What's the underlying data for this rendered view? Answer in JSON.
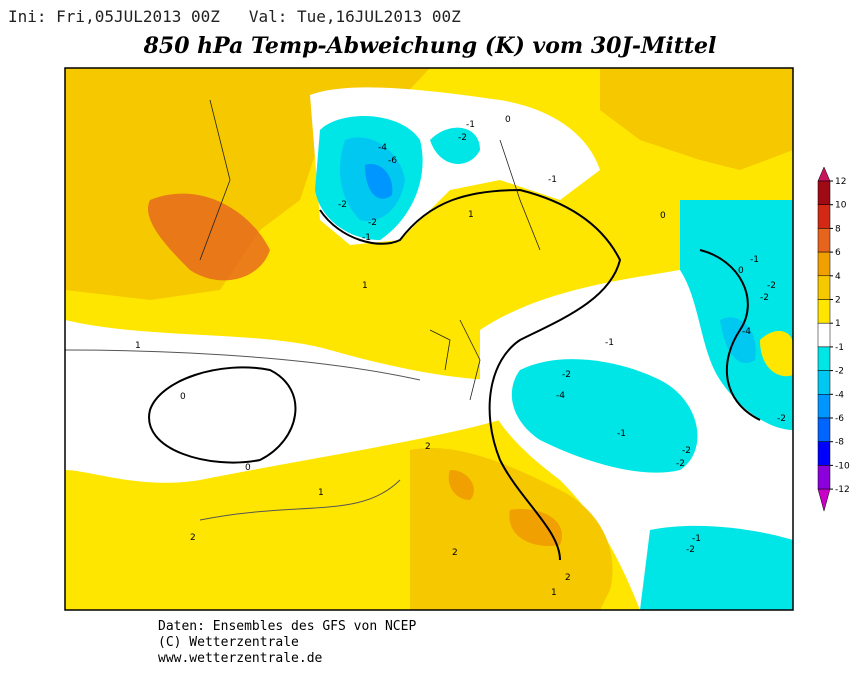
{
  "header": {
    "info": "Ini: Fri,05JUL2013 00Z   Val: Tue,16JUL2013 00Z",
    "title": "850 hPa Temp-Abweichung (K) vom 30J-Mittel"
  },
  "footer": [
    "Daten: Ensembles des GFS von NCEP",
    "(C) Wetterzentrale",
    "www.wetterzentrale.de"
  ],
  "colorbar": {
    "levels": [
      12,
      10,
      8,
      6,
      4,
      2,
      1,
      -1,
      -2,
      -4,
      -6,
      -8,
      -10,
      -12
    ],
    "colors": [
      "#c8145a",
      "#a00a14",
      "#d22814",
      "#e6641e",
      "#f0a000",
      "#f5c800",
      "#ffe600",
      "#ffffff",
      "#00e6e6",
      "#00c8f0",
      "#0096ff",
      "#0064ff",
      "#0000ff",
      "#8c00dc",
      "#c800c8"
    ]
  },
  "contour_labels": [
    "-4",
    "-6",
    "-2",
    "-2",
    "-1",
    "-1",
    "-2",
    "0",
    "1",
    "1",
    "0",
    "0",
    "1",
    "2",
    "2",
    "1",
    "2",
    "1",
    "2",
    "-1",
    "-2",
    "-4",
    "-2",
    "-1",
    "-4",
    "-2",
    "-2",
    "-2",
    "-1",
    "-2",
    "-1",
    "0",
    "0",
    "-1",
    "-2"
  ]
}
